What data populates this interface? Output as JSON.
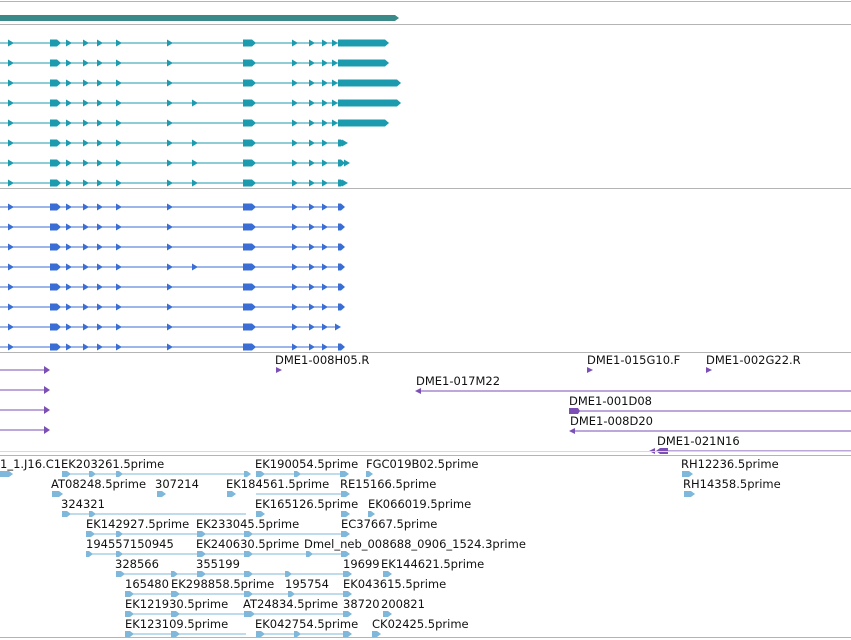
{
  "colors": {
    "track_top": "#3a8a8a",
    "track_cdna": "#1c9aae",
    "track_gene": "#3a6ed4",
    "track_bac": "#7b4fb4",
    "track_est": "#7fb8da",
    "divider": "#b4b4b4",
    "label": "#111111"
  },
  "bac_labels": [
    {
      "text": "DME1-008H05.R"
    },
    {
      "text": "DME1-015G10.F"
    },
    {
      "text": "DME1-002G22.R"
    },
    {
      "text": "DME1-017M22"
    },
    {
      "text": "DME1-001D08"
    },
    {
      "text": "DME1-008D20"
    },
    {
      "text": "DME1-021N16"
    }
  ],
  "est_labels": [
    {
      "text": "1_1.J16.C1"
    },
    {
      "text": "EK203261.5prime"
    },
    {
      "text": "EK190054.5prime"
    },
    {
      "text": "FGC019B02.5prime"
    },
    {
      "text": "RH12236.5prime"
    },
    {
      "text": "AT08248.5prime"
    },
    {
      "text": "307214"
    },
    {
      "text": "EK184561.5prime"
    },
    {
      "text": "RE15166.5prime"
    },
    {
      "text": "RH14358.5prime"
    },
    {
      "text": "324321"
    },
    {
      "text": "EK165126.5prime"
    },
    {
      "text": "EK066019.5prime"
    },
    {
      "text": "EK142927.5prime"
    },
    {
      "text": "EK233045.5prime"
    },
    {
      "text": "EC37667.5prime"
    },
    {
      "text": "194557150945"
    },
    {
      "text": "EK240630.5prime"
    },
    {
      "text": "Dmel_neb_008688_0906_1524.3prime"
    },
    {
      "text": "328566"
    },
    {
      "text": "355199"
    },
    {
      "text": "19699"
    },
    {
      "text": "EK144621.5prime"
    },
    {
      "text": "165480"
    },
    {
      "text": "EK298858.5prime"
    },
    {
      "text": "195754"
    },
    {
      "text": "EK043615.5prime"
    },
    {
      "text": "EK121930.5prime"
    },
    {
      "text": "AT24834.5prime"
    },
    {
      "text": "38720"
    },
    {
      "text": "200821"
    },
    {
      "text": "EK123109.5prime"
    },
    {
      "text": "EK042754.5prime"
    },
    {
      "text": "CK02425.5prime"
    }
  ]
}
